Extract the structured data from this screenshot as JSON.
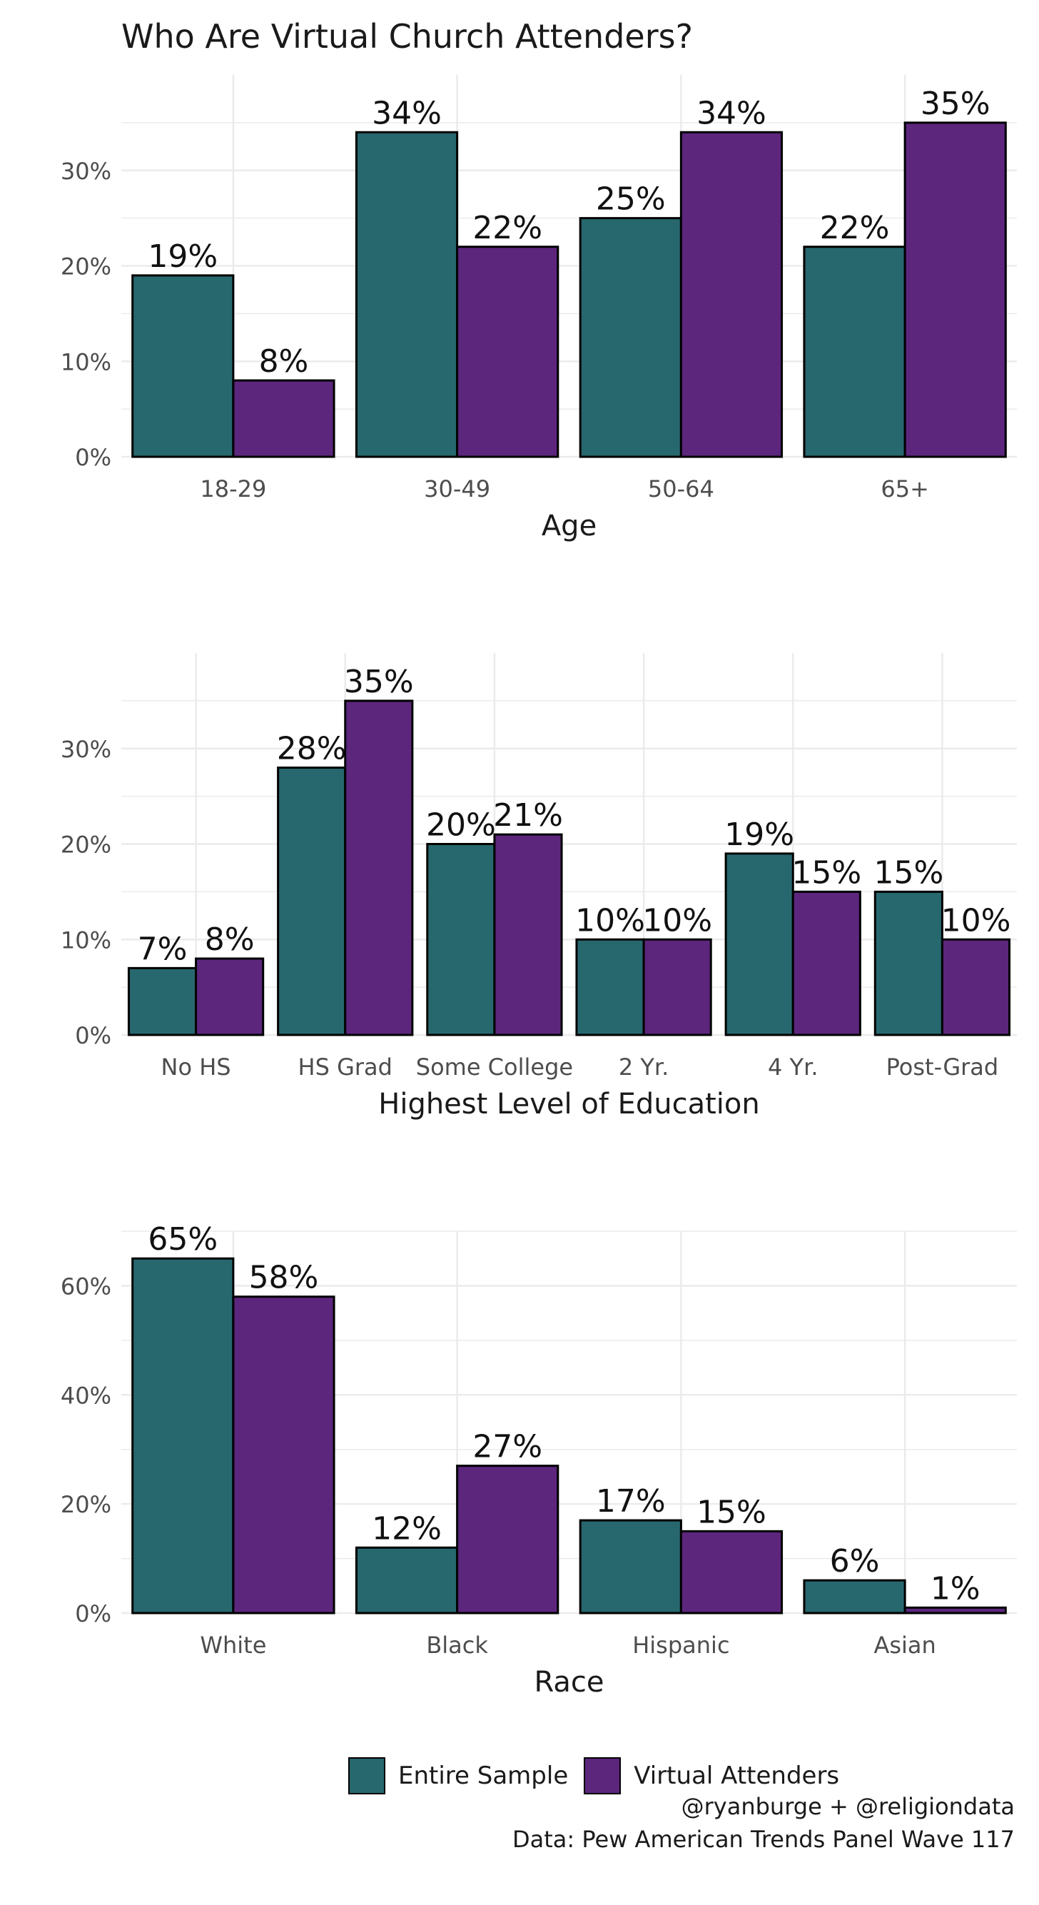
{
  "title": "Who Are Virtual Church Attenders?",
  "colors": {
    "entire": "#27686e",
    "virtual": "#5c267d",
    "grid": "#ebebeb",
    "axis_text": "#4d4d4d"
  },
  "legend": {
    "entire": "Entire Sample",
    "virtual": "Virtual Attenders"
  },
  "caption": {
    "line1": "@ryanburge + @religiondata",
    "line2": "Data: Pew American Trends Panel Wave 117"
  },
  "chart_data": [
    {
      "type": "bar",
      "xlabel": "Age",
      "categories": [
        "18-29",
        "30-49",
        "50-64",
        "65+"
      ],
      "yticks": [
        "0%",
        "10%",
        "20%",
        "30%"
      ],
      "ylim": [
        0,
        40
      ],
      "series": [
        {
          "name": "Entire Sample",
          "values": [
            19,
            34,
            25,
            22
          ],
          "labels": [
            "19%",
            "34%",
            "25%",
            "22%"
          ]
        },
        {
          "name": "Virtual Attenders",
          "values": [
            8,
            22,
            34,
            35
          ],
          "labels": [
            "8%",
            "22%",
            "34%",
            "35%"
          ]
        }
      ]
    },
    {
      "type": "bar",
      "xlabel": "Highest Level of Education",
      "categories": [
        "No HS",
        "HS Grad",
        "Some College",
        "2 Yr.",
        "4 Yr.",
        "Post-Grad"
      ],
      "yticks": [
        "0%",
        "10%",
        "20%",
        "30%"
      ],
      "ylim": [
        0,
        40
      ],
      "series": [
        {
          "name": "Entire Sample",
          "values": [
            7,
            28,
            20,
            10,
            19,
            15
          ],
          "labels": [
            "7%",
            "28%",
            "20%",
            "10%",
            "19%",
            "15%"
          ]
        },
        {
          "name": "Virtual Attenders",
          "values": [
            8,
            35,
            21,
            10,
            15,
            10
          ],
          "labels": [
            "8%",
            "35%",
            "21%",
            "10%",
            "15%",
            "10%"
          ]
        }
      ]
    },
    {
      "type": "bar",
      "xlabel": "Race",
      "categories": [
        "White",
        "Black",
        "Hispanic",
        "Asian"
      ],
      "yticks": [
        "0%",
        "20%",
        "40%",
        "60%"
      ],
      "ylim": [
        0,
        70
      ],
      "series": [
        {
          "name": "Entire Sample",
          "values": [
            65,
            12,
            17,
            6
          ],
          "labels": [
            "65%",
            "12%",
            "17%",
            "6%"
          ]
        },
        {
          "name": "Virtual Attenders",
          "values": [
            58,
            27,
            15,
            1
          ],
          "labels": [
            "58%",
            "27%",
            "15%",
            "1%"
          ]
        }
      ]
    }
  ]
}
